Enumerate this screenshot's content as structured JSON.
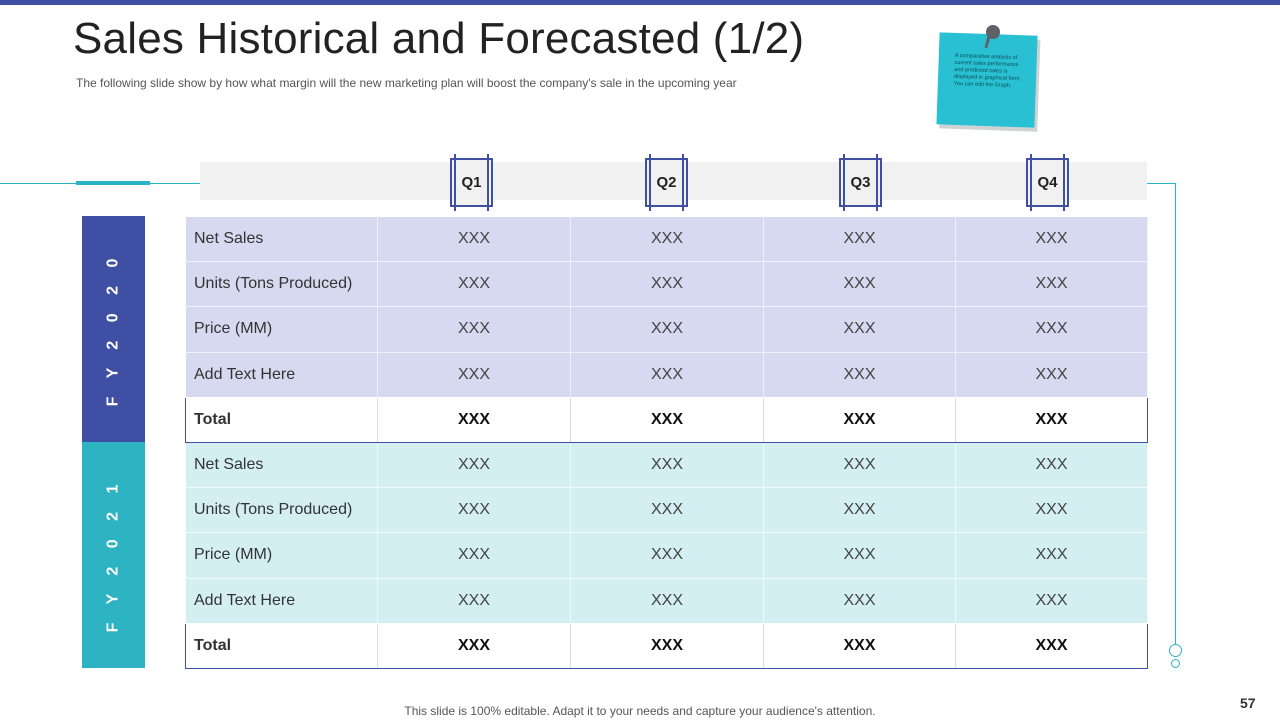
{
  "slide": {
    "title": "Sales Historical and Forecasted (1/2)",
    "subtitle": "The following  slide show by how what margin will the new marketing plan will boost the company's sale in the upcoming year",
    "sticky_note": "A comparative analysis of current sales performance and predicted sales is displayed in graphical form . You can edit the Graph.",
    "footer": "This slide is 100% editable. Adapt it to your needs and capture your audience's attention.",
    "page_number": "57"
  },
  "colors": {
    "primary": "#3f4fa3",
    "secondary": "#2eb3c3",
    "row_fill_1": "#d6d9ef",
    "row_fill_2": "#d3eff2"
  },
  "table": {
    "quarters": [
      "Q1",
      "Q2",
      "Q3",
      "Q4"
    ],
    "groups": [
      {
        "label": "F Y  2 0 2 0",
        "rows": [
          {
            "label": "Net Sales",
            "values": [
              "XXX",
              "XXX",
              "XXX",
              "XXX"
            ]
          },
          {
            "label": "Units (Tons Produced)",
            "values": [
              "XXX",
              "XXX",
              "XXX",
              "XXX"
            ]
          },
          {
            "label": "Price  (MM)",
            "values": [
              "XXX",
              "XXX",
              "XXX",
              "XXX"
            ]
          },
          {
            "label": "Add Text Here",
            "values": [
              "XXX",
              "XXX",
              "XXX",
              "XXX"
            ]
          }
        ],
        "total": {
          "label": "Total",
          "values": [
            "XXX",
            "XXX",
            "XXX",
            "XXX"
          ]
        }
      },
      {
        "label": "F Y  2 0 2 1",
        "rows": [
          {
            "label": "Net Sales",
            "values": [
              "XXX",
              "XXX",
              "XXX",
              "XXX"
            ]
          },
          {
            "label": "Units (Tons Produced)",
            "values": [
              "XXX",
              "XXX",
              "XXX",
              "XXX"
            ]
          },
          {
            "label": "Price  (MM)",
            "values": [
              "XXX",
              "XXX",
              "XXX",
              "XXX"
            ]
          },
          {
            "label": "Add Text Here",
            "values": [
              "XXX",
              "XXX",
              "XXX",
              "XXX"
            ]
          }
        ],
        "total": {
          "label": "Total",
          "values": [
            "XXX",
            "XXX",
            "XXX",
            "XXX"
          ]
        }
      }
    ]
  }
}
